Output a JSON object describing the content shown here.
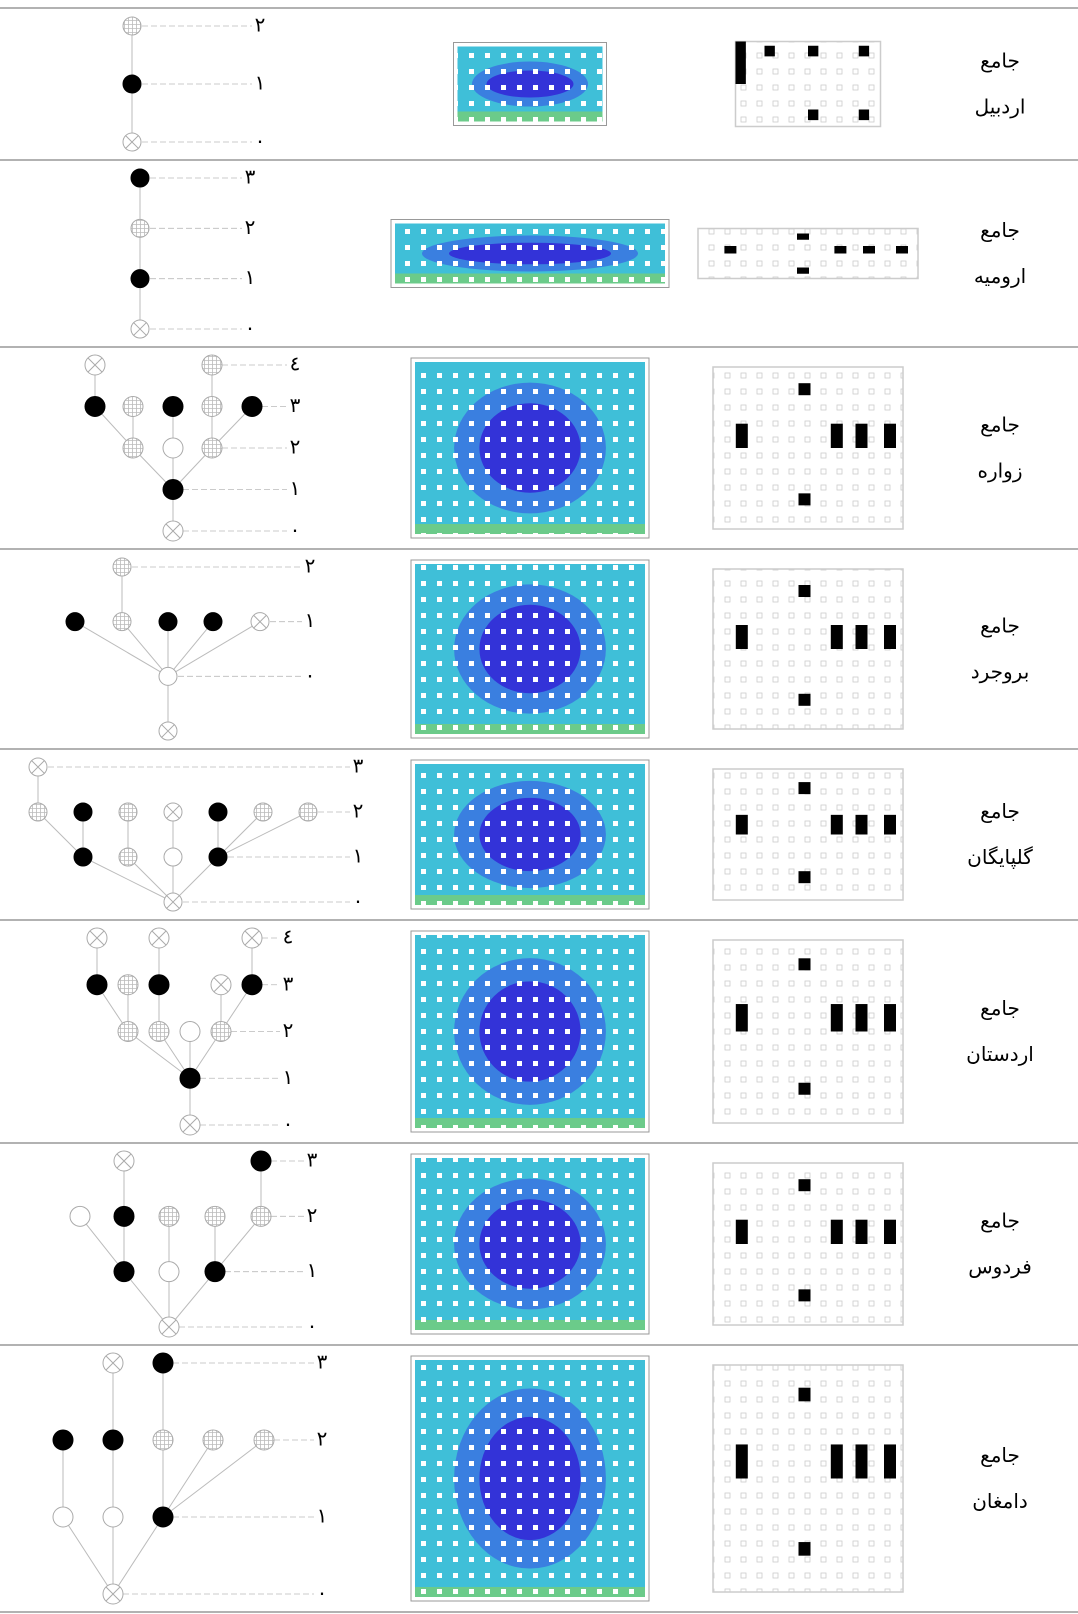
{
  "rows": [
    {
      "name": [
        "جامع",
        "اردبیل"
      ],
      "levels": [
        "٢",
        "١",
        "٠"
      ]
    },
    {
      "name": [
        "جامع",
        "ارومیه"
      ],
      "levels": [
        "٣",
        "٢",
        "١",
        "٠"
      ]
    },
    {
      "name": [
        "جامع",
        "زواره"
      ],
      "levels": [
        "٤",
        "٣",
        "٢",
        "١",
        "٠"
      ]
    },
    {
      "name": [
        "جامع",
        "بروجرد"
      ],
      "levels": [
        "٢",
        "١",
        "٠"
      ]
    },
    {
      "name": [
        "جامع",
        "گلپایگان"
      ],
      "levels": [
        "٣",
        "٢",
        "١",
        "٠"
      ]
    },
    {
      "name": [
        "جامع",
        "اردستان"
      ],
      "levels": [
        "٤",
        "٣",
        "٢",
        "١",
        "٠"
      ]
    },
    {
      "name": [
        "جامع",
        "فردوس"
      ],
      "levels": [
        "٣",
        "٢",
        "١",
        "٠"
      ]
    },
    {
      "name": [
        "جامع",
        "دامغان"
      ],
      "levels": [
        "٣",
        "٢",
        "١",
        "٠"
      ]
    }
  ]
}
